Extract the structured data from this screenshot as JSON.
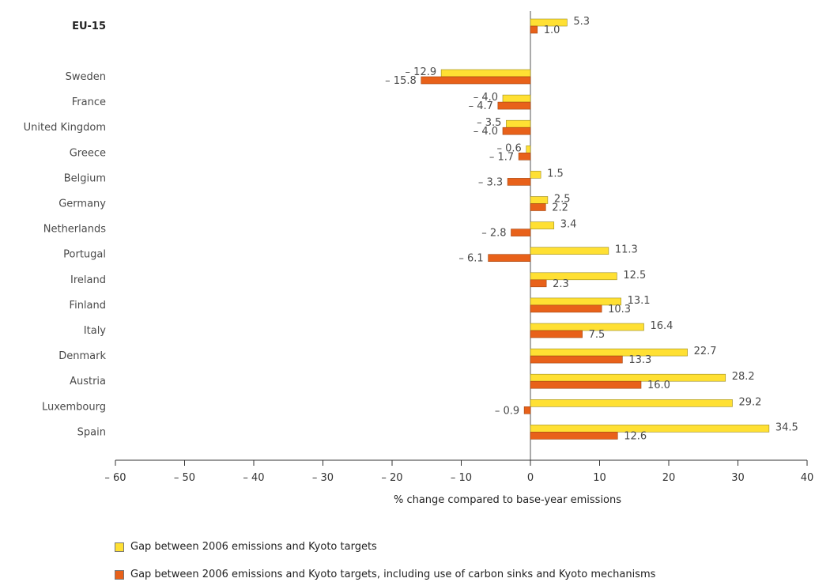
{
  "chart_data": {
    "type": "bar",
    "orientation": "horizontal",
    "categories": [
      "EU-15",
      "Sweden",
      "France",
      "United Kingdom",
      "Greece",
      "Belgium",
      "Germany",
      "Netherlands",
      "Portugal",
      "Ireland",
      "Finland",
      "Italy",
      "Denmark",
      "Austria",
      "Luxembourg",
      "Spain"
    ],
    "series": [
      {
        "name": "Gap between 2006 emissions and Kyoto targets",
        "color": "#ffe033",
        "values": [
          5.3,
          -12.9,
          -4.0,
          -3.5,
          -0.6,
          1.5,
          2.5,
          3.4,
          11.3,
          12.5,
          13.1,
          16.4,
          22.7,
          28.2,
          29.2,
          34.5
        ],
        "labels": [
          "5.3",
          "– 12.9",
          "– 4.0",
          "– 3.5",
          "– 0.6",
          "1.5",
          "2.5",
          "3.4",
          "11.3",
          "12.5",
          "13.1",
          "16.4",
          "22.7",
          "28.2",
          "29.2",
          "34.5"
        ]
      },
      {
        "name": "Gap between 2006 emissions and Kyoto targets, including use of carbon sinks and Kyoto mechanisms",
        "color": "#e8611a",
        "values": [
          1.0,
          -15.8,
          -4.7,
          -4.0,
          -1.7,
          -3.3,
          2.2,
          -2.8,
          -6.1,
          2.3,
          10.3,
          7.5,
          13.3,
          16.0,
          -0.9,
          12.6
        ],
        "labels": [
          "1.0",
          "– 15.8",
          "– 4.7",
          "– 4.0",
          "– 1.7",
          "– 3.3",
          "2.2",
          "– 2.8",
          "– 6.1",
          "2.3",
          "10.3",
          "7.5",
          "13.3",
          "16.0",
          "– 0.9",
          "12.6"
        ]
      }
    ],
    "xlabel": "% change compared to base-year emissions",
    "xlim": [
      -60,
      40
    ],
    "xticks": [
      -60,
      -50,
      -40,
      -30,
      -20,
      -10,
      0,
      10,
      20,
      30,
      40
    ],
    "xtick_labels": [
      "– 60",
      "– 50",
      "– 40",
      "– 30",
      "– 20",
      "– 10",
      "0",
      "10",
      "20",
      "30",
      "40"
    ],
    "legend_position": "bottom-left"
  }
}
